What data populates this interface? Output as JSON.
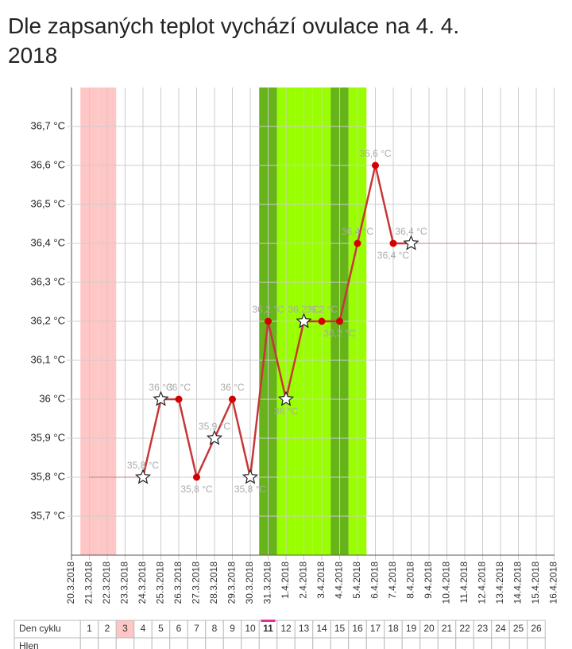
{
  "chart_data": {
    "type": "line",
    "title": "Dle zapsaných teplot vychází ovulace na 4. 4. 2018",
    "categories": [
      "20.3.2018",
      "21.3.2018",
      "22.3.2018",
      "23.3.2018",
      "24.3.2018",
      "25.3.2018",
      "26.3.2018",
      "27.3.2018",
      "28.3.2018",
      "29.3.2018",
      "30.3.2018",
      "31.3.2018",
      "1.4.2018",
      "2.4.2018",
      "3.4.2018",
      "4.4.2018",
      "5.4.2018",
      "6.4.2018",
      "7.4.2018",
      "8.4.2018",
      "9.4.2018",
      "10.4.2018",
      "11.4.2018",
      "12.4.2018",
      "13.4.2018",
      "14.4.2018",
      "15.4.2018",
      "16.4.2018"
    ],
    "series": [
      {
        "color": "#c83737",
        "values": [
          null,
          null,
          null,
          null,
          35.8,
          36,
          36,
          35.8,
          35.9,
          36,
          35.8,
          36.2,
          36,
          36.2,
          36.2,
          36.2,
          36.4,
          36.6,
          36.4,
          36.4,
          null,
          null,
          null,
          null,
          null,
          null,
          null,
          null
        ],
        "value_labels": [
          null,
          null,
          null,
          null,
          "35,8 °C",
          "36 °C",
          "36 °C",
          "35,8 °C",
          "35,9 °C",
          "36 °C",
          "35,8 °C",
          "36,2 °C",
          "36 °C",
          "36,2 °C",
          "36,2 °C",
          "36,2 °C",
          "36,4 °C",
          "36,6 °C",
          "36,4 °C",
          "36,4 °C",
          null,
          null,
          null,
          null,
          null,
          null,
          null,
          null
        ],
        "markers": [
          null,
          null,
          null,
          null,
          "star",
          "star",
          "dot",
          "dot",
          "star",
          "dot",
          "star",
          "dot",
          "star",
          "star",
          "dot",
          "dot",
          "dot",
          "dot",
          "dot",
          "star",
          null,
          null,
          null,
          null,
          null,
          null,
          null,
          null
        ]
      },
      {
        "color": "#c83737",
        "values": [
          null,
          35.8,
          35.8,
          35.8,
          35.8,
          null,
          null,
          null,
          null,
          null,
          null,
          null,
          null,
          null,
          null,
          null,
          null,
          null,
          null,
          36.4,
          36.4,
          36.4,
          36.4,
          36.4,
          36.4,
          36.4,
          36.4,
          null
        ]
      }
    ],
    "column_colors": [
      null,
      "#ffc6c6",
      "#ffc6c6",
      null,
      null,
      null,
      null,
      null,
      null,
      null,
      null,
      "#66b31a",
      "#99ff00",
      "#99ff00",
      "#99ff00",
      "#66b31a",
      "#99ff00",
      null,
      null,
      null,
      null,
      null,
      null,
      null,
      null,
      null,
      null,
      null
    ],
    "ylim": [
      35.6,
      36.8
    ],
    "yticks": [
      {
        "value": 35.7,
        "label": "35,7 °C"
      },
      {
        "value": 35.8,
        "label": "35,8 °C"
      },
      {
        "value": 35.9,
        "label": "35,9 °C"
      },
      {
        "value": 36,
        "label": "36 °C"
      },
      {
        "value": 36.1,
        "label": "36,1 °C"
      },
      {
        "value": 36.2,
        "label": "36,2 °C"
      },
      {
        "value": 36.3,
        "label": "36,3 °C"
      },
      {
        "value": 36.4,
        "label": "36,4 °C"
      },
      {
        "value": 36.5,
        "label": "36,5 °C"
      },
      {
        "value": 36.6,
        "label": "36,6 °C"
      },
      {
        "value": 36.7,
        "label": "36,7 °C"
      }
    ],
    "grid": true,
    "cycle_label": "Den cyklu",
    "cycle_days": [
      1,
      2,
      3,
      4,
      5,
      6,
      7,
      8,
      9,
      10,
      11,
      12,
      13,
      14,
      15,
      16,
      17,
      18,
      19,
      20,
      21,
      22,
      23,
      24,
      25,
      26
    ],
    "mucus_label": "Hlen"
  }
}
